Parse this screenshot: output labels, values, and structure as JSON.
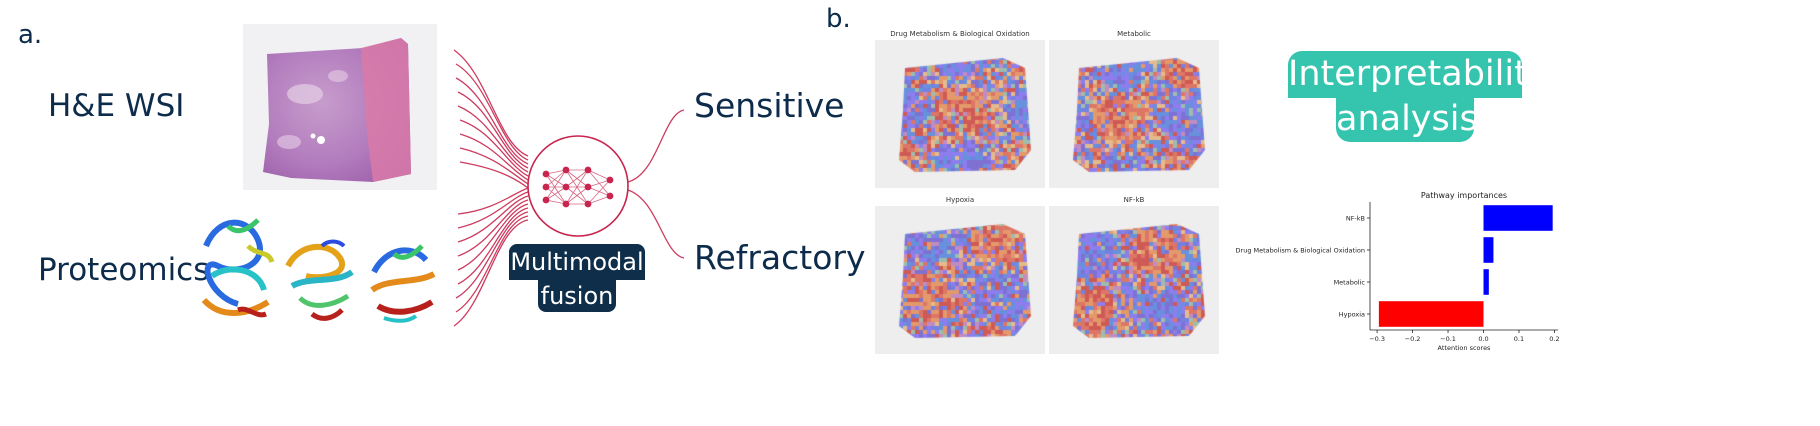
{
  "panel_a": {
    "letter": "a.",
    "modality_wsi": "H&E WSI",
    "modality_proteomics": "Proteomics",
    "fusion_line1": "Multimodal",
    "fusion_line2": "fusion",
    "output_sensitive": "Sensitive",
    "output_refractory": "Refractory"
  },
  "panel_b": {
    "letter": "b.",
    "maps": [
      {
        "title": "Drug Metabolism & Biological Oxidation"
      },
      {
        "title": "Metabolic"
      },
      {
        "title": "Hypoxia"
      },
      {
        "title": "NF-kB"
      }
    ],
    "interpretability_line1": "Interpretability",
    "interpretability_line2": "analysis"
  },
  "colors": {
    "navy": "#0d2b4a",
    "crimson": "#c8264e",
    "teal": "#35c4ad",
    "positive_bar": "#0000ff",
    "negative_bar": "#ff0000"
  },
  "chart_data": {
    "type": "bar",
    "orientation": "horizontal",
    "title": "Pathway importances",
    "xlabel": "Attention scores",
    "ylabel": "",
    "categories": [
      "NF-kB",
      "Drug Metabolism & Biological Oxidation",
      "Metabolic",
      "Hypoxia"
    ],
    "values": [
      0.195,
      0.028,
      0.015,
      -0.295
    ],
    "xlim": [
      -0.32,
      0.21
    ],
    "xticks": [
      -0.3,
      -0.2,
      -0.1,
      0.0,
      0.1,
      0.2
    ],
    "xtick_labels": [
      "−0.3",
      "−0.2",
      "−0.1",
      "0.0",
      "0.1",
      "0.2"
    ],
    "grid": false
  }
}
